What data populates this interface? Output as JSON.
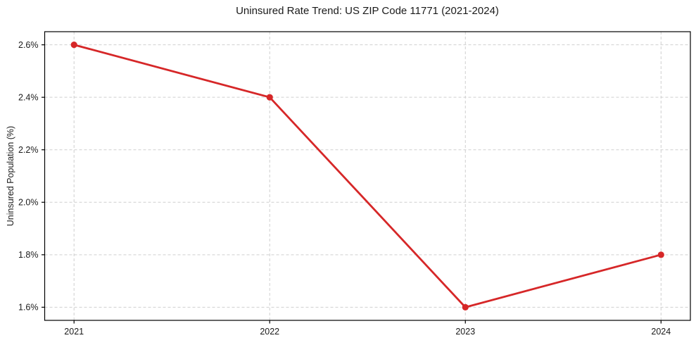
{
  "figure": {
    "background": "#ffffff"
  },
  "chart_data": {
    "type": "line",
    "title": "Uninsured Rate Trend: US ZIP Code 11771 (2021-2024)",
    "xlabel": "",
    "ylabel": "Uninsured Population (%)",
    "x": [
      2021,
      2022,
      2023,
      2024
    ],
    "series": [
      {
        "name": "Uninsured Population (%)",
        "values": [
          2.6,
          2.4,
          1.6,
          1.8
        ],
        "color": "#d62728",
        "marker": "circle"
      }
    ],
    "xticks": [
      2021,
      2022,
      2023,
      2024
    ],
    "xtick_labels": [
      "2021",
      "2022",
      "2023",
      "2024"
    ],
    "yticks": [
      1.6,
      1.8,
      2.0,
      2.2,
      2.4,
      2.6
    ],
    "ytick_labels": [
      "1.6%",
      "1.8%",
      "2.0%",
      "2.2%",
      "2.4%",
      "2.6%"
    ],
    "xlim": [
      2020.85,
      2024.15
    ],
    "ylim": [
      1.55,
      2.65
    ],
    "grid": true,
    "grid_style": "dashed",
    "grid_color": "#cfcfcf",
    "spine_color": "#000000",
    "legend": "none"
  }
}
